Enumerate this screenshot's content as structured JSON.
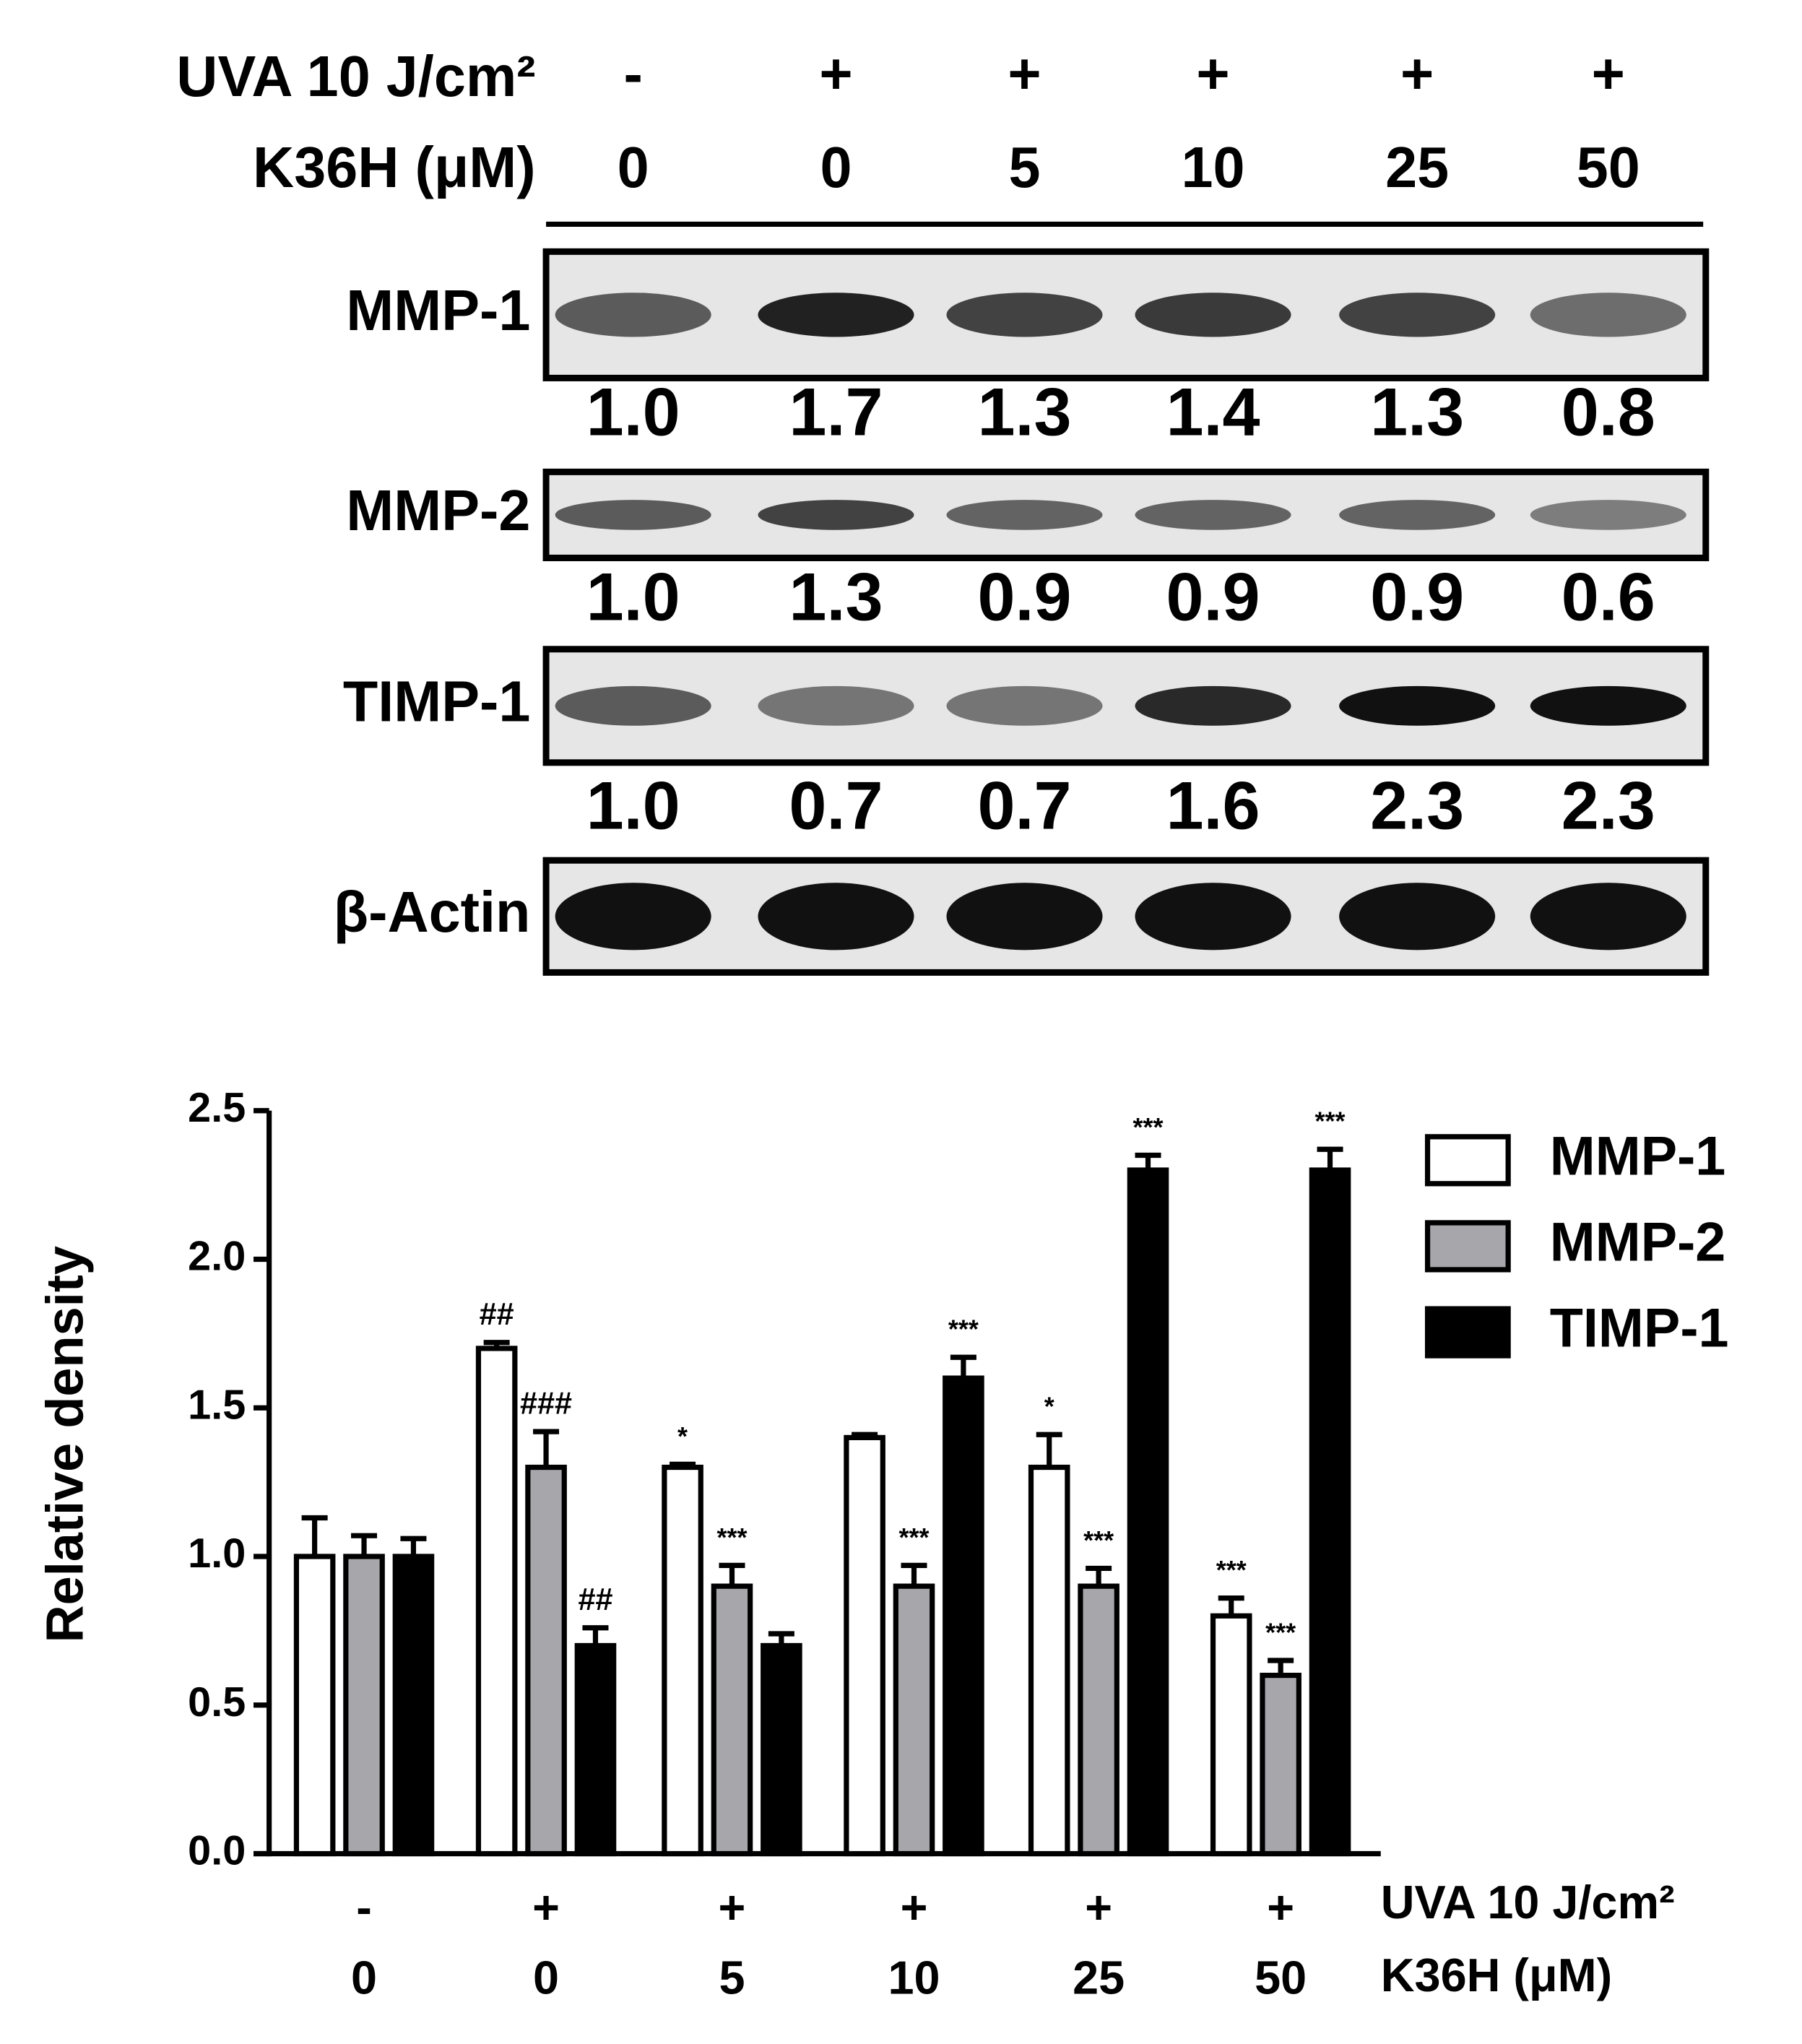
{
  "blot": {
    "uva_label": "UVA 10 J/cm²",
    "k36h_label": "K36H (μM)",
    "uva": [
      "-",
      "+",
      "+",
      "+",
      "+",
      "+"
    ],
    "k36h": [
      "0",
      "0",
      "5",
      "10",
      "25",
      "50"
    ],
    "rows": [
      {
        "label": "MMP-1",
        "quant": [
          "1.0",
          "1.7",
          "1.3",
          "1.4",
          "1.3",
          "0.8"
        ]
      },
      {
        "label": "MMP-2",
        "quant": [
          "1.0",
          "1.3",
          "0.9",
          "0.9",
          "0.9",
          "0.6"
        ]
      },
      {
        "label": "TIMP-1",
        "quant": [
          "1.0",
          "0.7",
          "0.7",
          "1.6",
          "2.3",
          "2.3"
        ]
      },
      {
        "label": "β-Actin"
      }
    ]
  },
  "chart_data": {
    "type": "bar",
    "y_label": "Relative density",
    "x_row_labels": [
      "UVA 10 J/cm²",
      "K36H (μM)"
    ],
    "category_uva": [
      "-",
      "+",
      "+",
      "+",
      "+",
      "+"
    ],
    "categories": [
      "0",
      "0",
      "5",
      "10",
      "25",
      "50"
    ],
    "series": [
      {
        "name": "MMP-1",
        "color": "#ffffff",
        "values": [
          1.0,
          1.7,
          1.3,
          1.4,
          1.3,
          0.8
        ],
        "errors": [
          0.13,
          0.02,
          0.01,
          0.01,
          0.11,
          0.06
        ],
        "annotations": [
          null,
          "##",
          "*",
          null,
          "*",
          "***"
        ]
      },
      {
        "name": "MMP-2",
        "color": "#a7a6ab",
        "values": [
          1.0,
          1.3,
          0.9,
          0.9,
          0.9,
          0.6
        ],
        "errors": [
          0.07,
          0.12,
          0.07,
          0.07,
          0.06,
          0.05
        ],
        "annotations": [
          null,
          "###",
          "***",
          "***",
          "***",
          "***"
        ]
      },
      {
        "name": "TIMP-1",
        "color": "#000000",
        "values": [
          1.0,
          0.7,
          0.7,
          1.6,
          2.3,
          2.3
        ],
        "errors": [
          0.06,
          0.06,
          0.04,
          0.07,
          0.05,
          0.07
        ],
        "annotations": [
          null,
          "##",
          null,
          "***",
          "***",
          "***"
        ]
      }
    ],
    "ylim": [
      0,
      2.5
    ],
    "yticks": [
      {
        "value": 0,
        "label": "0.0"
      },
      0.5,
      {
        "value": 1,
        "label": "1.0"
      },
      1.5,
      {
        "value": 2,
        "label": "2.0"
      },
      2.5
    ],
    "legend": "top-right"
  }
}
